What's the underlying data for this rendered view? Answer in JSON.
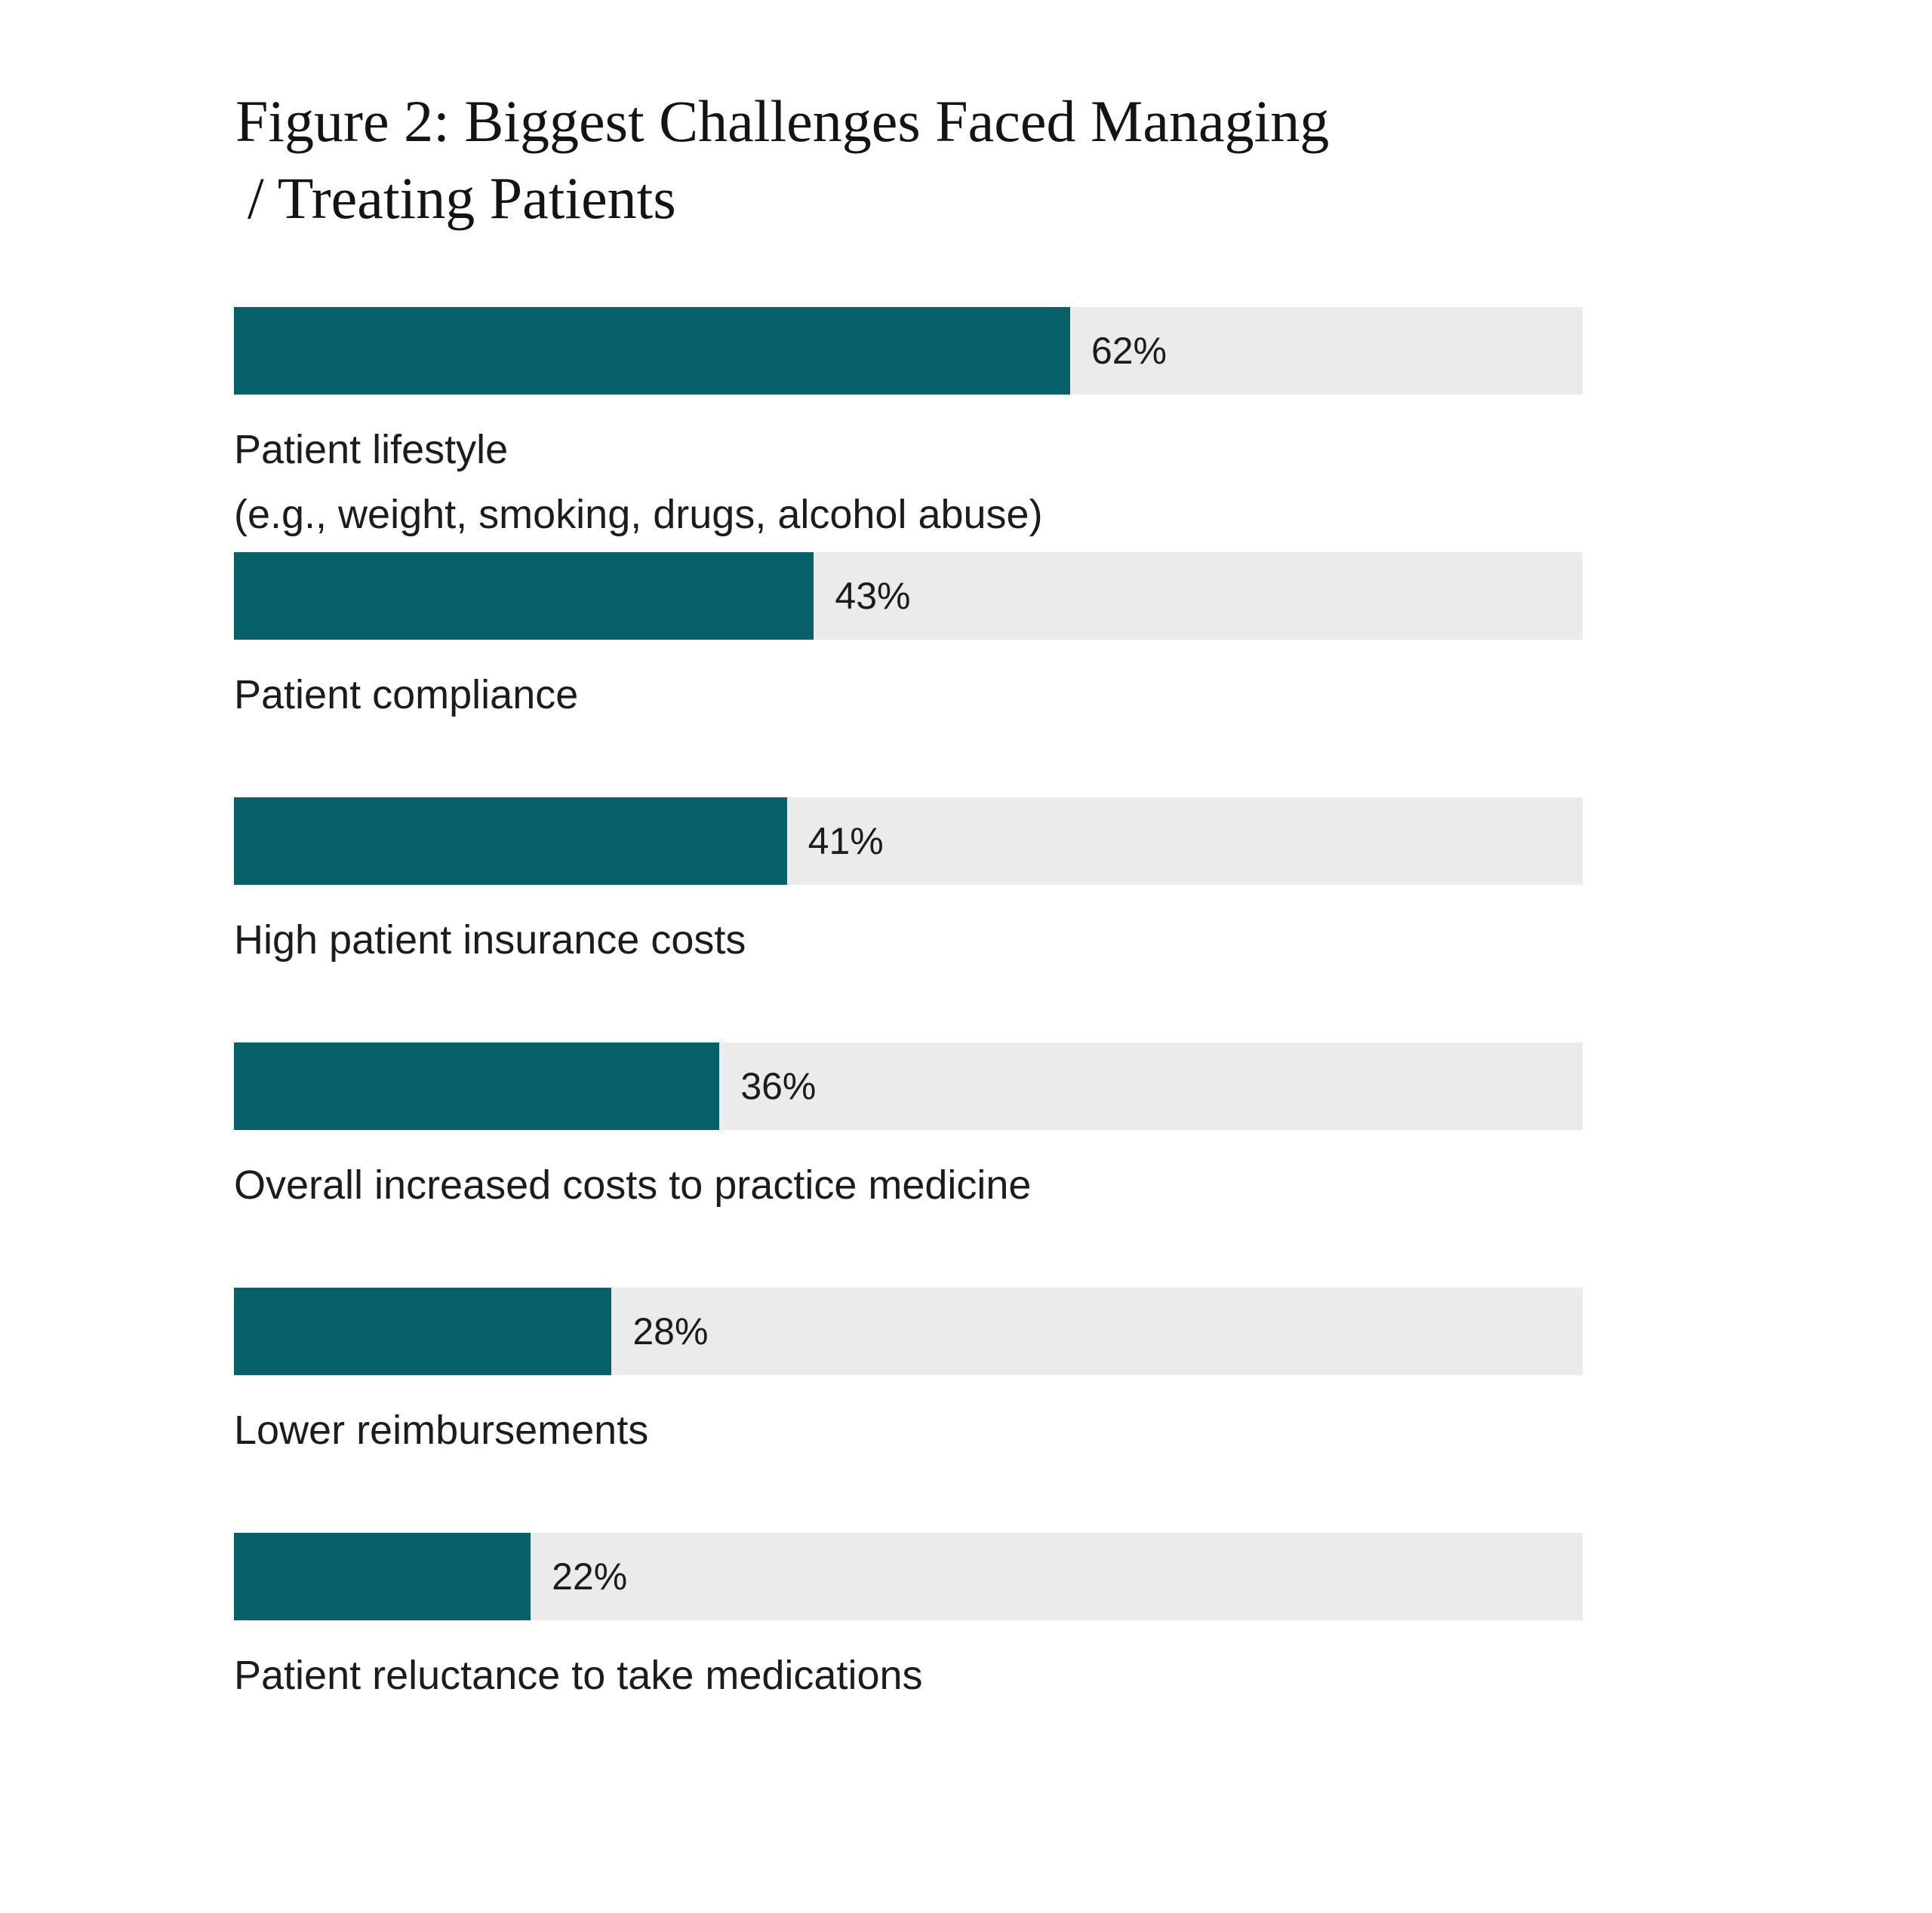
{
  "figure": {
    "title": "Figure 2: Biggest Challenges Faced Managing / Treating Patients",
    "title_line1": "Figure 2: Biggest Challenges Faced Managing",
    "title_line2": "/ Treating Patients"
  },
  "chart_data": {
    "type": "bar",
    "orientation": "horizontal",
    "title": "Figure 2: Biggest Challenges Faced Managing / Treating Patients",
    "categories": [
      "Patient lifestyle (e.g., weight, smoking, drugs, alcohol abuse)",
      "Patient compliance",
      "High patient insurance costs",
      "Overall increased costs to practice medicine",
      "Lower reimbursements",
      "Patient reluctance to take medications"
    ],
    "values": [
      62,
      43,
      41,
      36,
      28,
      22
    ],
    "value_suffix": "%",
    "xlim": [
      0,
      100
    ],
    "grid": false,
    "legend": false,
    "colors": {
      "bar_fill": "#06616b",
      "bar_track": "#ebebeb",
      "text": "#1c1c1c"
    },
    "bars": [
      {
        "label_line1": "Patient lifestyle",
        "label_line2": "(e.g., weight, smoking, drugs, alcohol abuse)",
        "value": 62,
        "value_label": "62%"
      },
      {
        "label_line1": "Patient compliance",
        "value": 43,
        "value_label": "43%"
      },
      {
        "label_line1": "High patient insurance costs",
        "value": 41,
        "value_label": "41%"
      },
      {
        "label_line1": "Overall increased costs to practice medicine",
        "value": 36,
        "value_label": "36%"
      },
      {
        "label_line1": "Lower reimbursements",
        "value": 28,
        "value_label": "28%"
      },
      {
        "label_line1": "Patient reluctance to take medications",
        "value": 22,
        "value_label": "22%"
      }
    ]
  }
}
